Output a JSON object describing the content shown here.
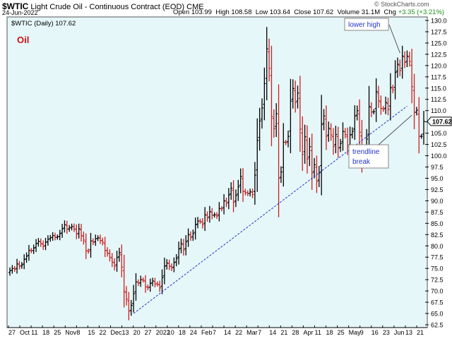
{
  "header": {
    "symbol": "$WTIC",
    "description": "Light Crude Oil - Continuous Contract (EOD)",
    "exchange": "CME",
    "date": "24-Jun-2022",
    "copyright": "© StockCharts.com",
    "ohlc": {
      "open_label": "Open",
      "open": "103.99",
      "high_label": "High",
      "high": "108.58",
      "low_label": "Low",
      "low": "103.64",
      "close_label": "Close",
      "close": "107.62",
      "volume_label": "Volume",
      "volume": "31.1M",
      "chg_label": "Chg",
      "chg": "+3.35 (+3.21%)"
    }
  },
  "colors": {
    "background": "#e6f7f9",
    "up_bar": "#000000",
    "down_bar": "#cc1f1f",
    "trendline": "#2233cc",
    "title_red": "#d01010",
    "annotation_text": "#2233cc",
    "price_marker": "#000000"
  },
  "chart_data": {
    "type": "bar",
    "subtype": "ohlc",
    "title": "Oil",
    "legend": "$WTIC (Daily) 107.62",
    "last_price": "107.62",
    "ylim": [
      62.5,
      130.0
    ],
    "yticks": [
      "62.5",
      "65.0",
      "67.5",
      "70.0",
      "72.5",
      "75.0",
      "77.5",
      "80.0",
      "82.5",
      "85.0",
      "87.5",
      "90.0",
      "92.5",
      "95.0",
      "97.5",
      "100.0",
      "102.5",
      "105.0",
      "107.5",
      "110.0",
      "112.5",
      "115.0",
      "117.5",
      "120.0",
      "122.5",
      "125.0",
      "127.5",
      "130.0"
    ],
    "xtick_labels": [
      "27",
      "Oct",
      "11",
      "18",
      "25",
      "Nov",
      "8",
      "15",
      "22",
      "Dec",
      "13",
      "20",
      "27",
      "2022",
      "10",
      "18",
      "24",
      "Feb",
      "7",
      "14",
      "22",
      "Mar",
      "7",
      "14",
      "21",
      "28",
      "Apr",
      "11",
      "18",
      "25",
      "May",
      "9",
      "16",
      "23",
      "Jun",
      "13",
      "21"
    ],
    "annotations": [
      {
        "text_lines": [
          "lower high"
        ],
        "target_date": "2022-06-08"
      },
      {
        "text_lines": [
          "trendline",
          "break"
        ],
        "target_date": "2022-06-14"
      }
    ],
    "trendline": {
      "from": {
        "date": "2021-12-02",
        "value": 65.0
      },
      "to": {
        "date": "2022-06-13",
        "value": 111.0
      }
    },
    "closes": [
      74.5,
      75.0,
      74.8,
      76.0,
      75.5,
      75.8,
      77.0,
      77.7,
      79.0,
      78.9,
      79.5,
      80.5,
      81.0,
      80.5,
      79.9,
      80.8,
      81.5,
      81.8,
      82.3,
      81.9,
      82.0,
      82.7,
      83.8,
      84.7,
      83.7,
      84.0,
      84.3,
      83.8,
      82.6,
      83.8,
      82.3,
      81.3,
      78.9,
      78.8,
      81.1,
      80.8,
      81.6,
      81.8,
      81.2,
      80.8,
      79.0,
      78.4,
      77.5,
      76.4,
      75.5,
      77.4,
      78.5,
      75.3,
      69.9,
      68.2,
      65.5,
      66.8,
      69.4,
      72.0,
      71.7,
      72.5,
      72.4,
      70.9,
      70.7,
      71.7,
      72.2,
      71.6,
      71.5,
      70.7,
      73.0,
      75.5,
      76.2,
      75.5,
      75.1,
      76.3,
      77.2,
      79.3,
      80.5,
      79.1,
      80.9,
      82.5,
      81.9,
      82.7,
      84.7,
      85.5,
      85.4,
      84.7,
      86.9,
      86.2,
      87.6,
      86.8,
      86.9,
      86.6,
      88.3,
      88.2,
      90.0,
      89.4,
      91.3,
      92.8,
      89.7,
      91.2,
      93.1,
      95.4,
      92.1,
      91.8,
      91.6,
      92.0,
      91.4,
      95.7,
      103.4,
      107.7,
      110.6,
      116.0,
      123.7,
      119.4,
      108.7,
      106.0,
      109.3,
      95.0,
      96.4,
      103.0,
      102.9,
      104.3,
      112.1,
      114.9,
      111.8,
      113.9,
      105.9,
      100.3,
      104.2,
      99.3,
      102.0,
      96.2,
      98.0,
      94.3,
      96.2,
      106.9,
      108.8,
      104.3,
      106.1,
      104.6,
      102.1,
      104.7,
      101.7,
      102.7,
      105.4,
      104.7,
      102.1,
      104.6,
      105.4,
      108.8,
      110.0,
      105.2,
      99.8,
      100.6,
      103.7,
      110.9,
      109.7,
      109.8,
      114.2,
      112.2,
      110.5,
      110.3,
      111.8,
      110.3,
      115.1,
      114.6,
      118.5,
      120.3,
      118.9,
      122.1,
      120.7,
      122.1,
      120.9,
      115.3,
      109.6,
      110.1,
      104.3,
      104.3,
      107.6
    ]
  }
}
